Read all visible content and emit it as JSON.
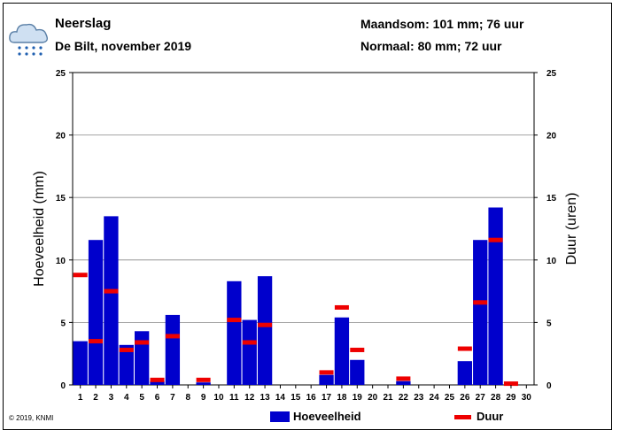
{
  "header": {
    "title": "Neerslag",
    "subtitle": "De Bilt, november 2019",
    "monthsum": "Maandsom: 101 mm; 76 uur",
    "normal": "Normaal: 80 mm; 72 uur"
  },
  "footer": {
    "copyright": "© 2019, KNMI"
  },
  "legend": {
    "amount_label": "Hoeveelheid",
    "duration_label": "Duur"
  },
  "colors": {
    "bar": "#0000cc",
    "duration": "#ee0000",
    "grid": "#888888"
  },
  "chart_data": {
    "type": "bar",
    "ylabel": "Hoeveelheid (mm)",
    "y2label": "Duur (uren)",
    "ylim": [
      0,
      25
    ],
    "y2lim": [
      0,
      25
    ],
    "yticks": [
      0,
      5,
      10,
      15,
      20,
      25
    ],
    "categories": [
      "1",
      "2",
      "3",
      "4",
      "5",
      "6",
      "7",
      "8",
      "9",
      "10",
      "11",
      "12",
      "13",
      "14",
      "15",
      "16",
      "17",
      "18",
      "19",
      "20",
      "21",
      "22",
      "23",
      "24",
      "25",
      "26",
      "27",
      "28",
      "29",
      "30"
    ],
    "series": [
      {
        "name": "Hoeveelheid",
        "values": [
          3.5,
          11.6,
          13.5,
          3.2,
          4.3,
          0.3,
          5.6,
          0,
          0.2,
          0,
          8.3,
          5.2,
          8.7,
          0,
          0,
          0,
          0.8,
          5.4,
          2.0,
          0,
          0,
          0.3,
          0,
          0,
          0,
          1.9,
          11.6,
          14.2,
          0,
          0
        ]
      },
      {
        "name": "Duur",
        "values": [
          8.8,
          3.5,
          7.5,
          2.8,
          3.4,
          0.4,
          3.9,
          0,
          0.4,
          0,
          5.2,
          3.4,
          4.8,
          0,
          0,
          0,
          1.0,
          6.2,
          2.8,
          0,
          0,
          0.5,
          0,
          0,
          0,
          2.9,
          6.6,
          11.6,
          0.1,
          0
        ]
      }
    ]
  }
}
